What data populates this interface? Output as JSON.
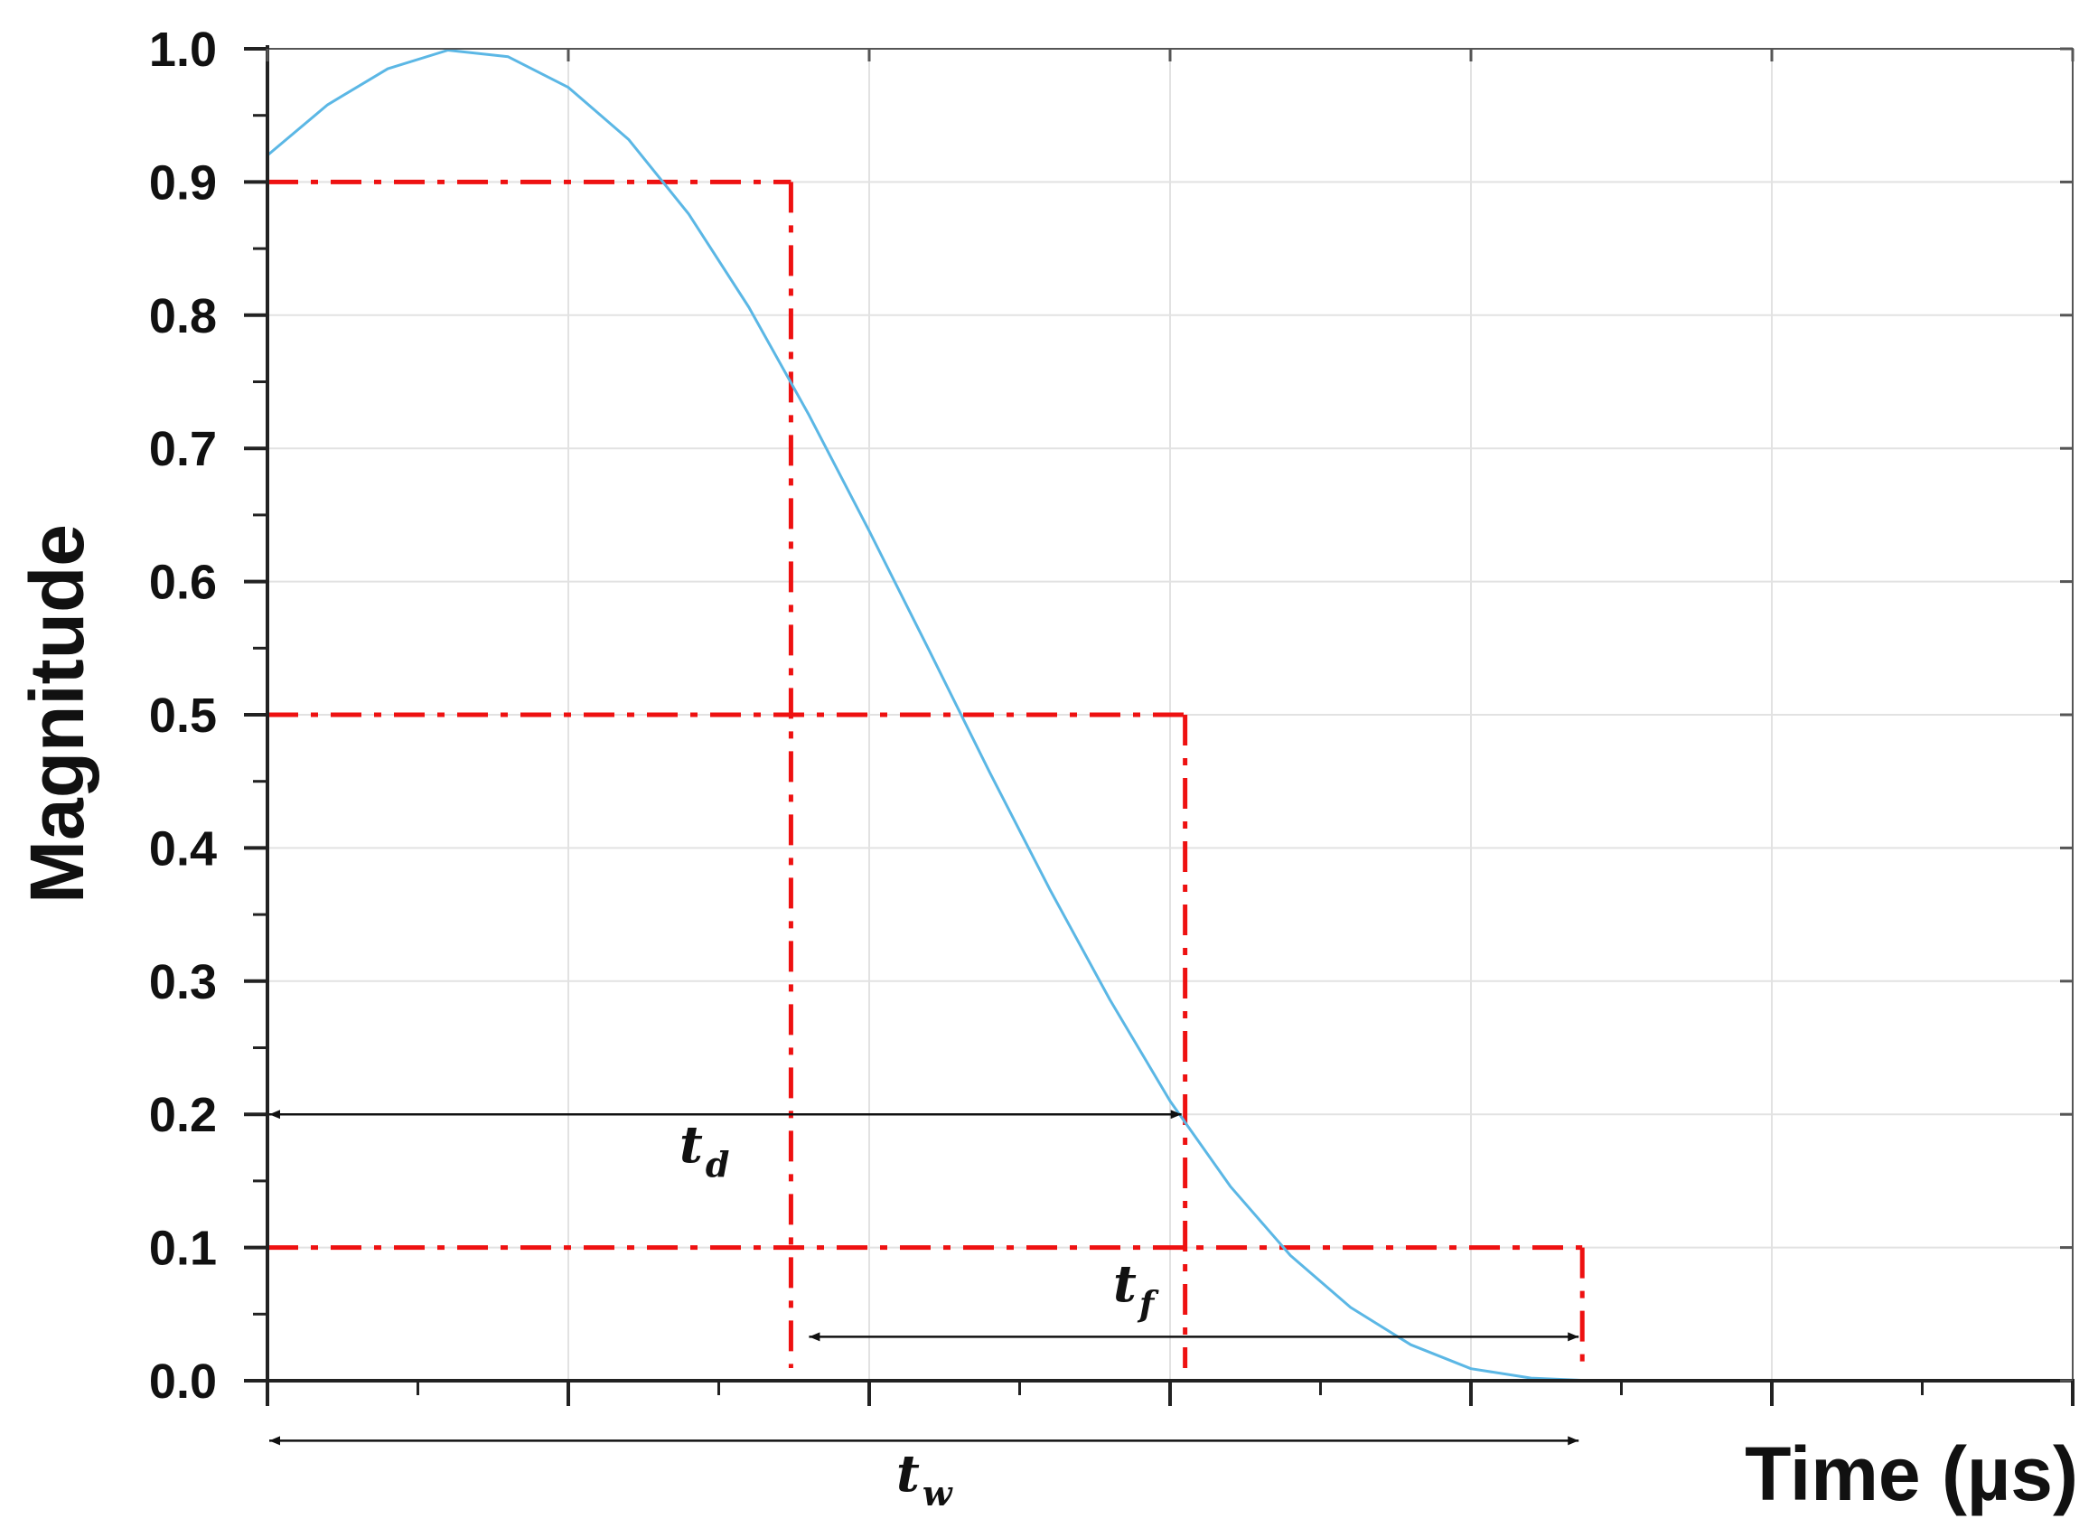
{
  "chart_data": {
    "type": "line",
    "title": "",
    "xlabel": "Time (µs)",
    "ylabel": "Magnitude",
    "ylim": [
      0,
      1
    ],
    "xlim": [
      0,
      6
    ],
    "x_ticks_labeled": false,
    "y_ticks": [
      "0.0",
      "0.1",
      "0.2",
      "0.3",
      "0.4",
      "0.5",
      "0.6",
      "0.7",
      "0.8",
      "0.9",
      "1.0"
    ],
    "grid": true,
    "series": [
      {
        "color": "#5bb7e5",
        "x": [
          0.0,
          0.2,
          0.4,
          0.6,
          0.8,
          1.0,
          1.2,
          1.4,
          1.6,
          1.8,
          2.0,
          2.2,
          2.4,
          2.6,
          2.8,
          3.0,
          3.2,
          3.4,
          3.6,
          3.8,
          4.0,
          4.2,
          4.4,
          4.6,
          4.8,
          5.0,
          5.2,
          5.4,
          5.6,
          5.8,
          6.0
        ],
        "values": [
          0.92,
          0.958,
          0.985,
          0.999,
          0.994,
          0.971,
          0.932,
          0.876,
          0.806,
          0.725,
          0.638,
          0.548,
          0.457,
          0.369,
          0.286,
          0.21,
          0.146,
          0.094,
          0.055,
          0.027,
          0.009,
          0.002,
          0.0,
          0.0,
          0.0,
          0.0,
          0.0,
          0.0,
          0.0,
          0.0,
          0.0
        ]
      }
    ],
    "reference_lines": {
      "color": "#ee1111",
      "levels": [
        {
          "y": 0.9,
          "x": 1.74
        },
        {
          "y": 0.5,
          "x": 3.05
        },
        {
          "y": 0.1,
          "x": 4.37
        }
      ]
    },
    "annotations": [
      {
        "label": "t",
        "sub": "d",
        "x_start": 0.0,
        "x_end": 3.05,
        "y": 0.2
      },
      {
        "label": "t",
        "sub": "f",
        "x_start": 1.74,
        "x_end": 4.37,
        "y": 0.033
      },
      {
        "label": "t",
        "sub": "w",
        "x_start": 0.0,
        "x_end": 4.37,
        "y": -0.045
      }
    ]
  }
}
